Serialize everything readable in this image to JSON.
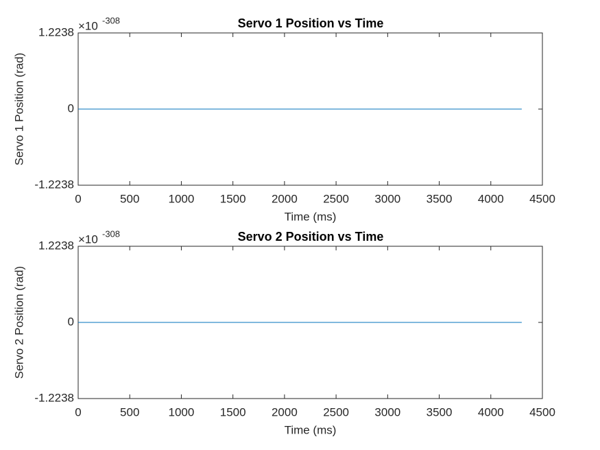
{
  "chart_data": [
    {
      "type": "line",
      "title": "Servo 1 Position vs Time",
      "xlabel": "Time (ms)",
      "ylabel": "Servo 1 Position (rad)",
      "y_multiplier": {
        "base": "×10",
        "exponent": "-308"
      },
      "x": [
        0,
        4300
      ],
      "series": [
        {
          "name": "Servo 1",
          "color": "#0072bd",
          "values": [
            0,
            0
          ]
        }
      ],
      "xlim": [
        0,
        4500
      ],
      "xticks": [
        0,
        500,
        1000,
        1500,
        2000,
        2500,
        3000,
        3500,
        4000,
        4500
      ],
      "ylim": [
        -1.2238,
        1.2238
      ],
      "yticks": [
        -1.2238,
        0,
        1.2238
      ],
      "grid": false
    },
    {
      "type": "line",
      "title": "Servo 2 Position vs Time",
      "xlabel": "Time (ms)",
      "ylabel": "Servo 2 Position (rad)",
      "y_multiplier": {
        "base": "×10",
        "exponent": "-308"
      },
      "x": [
        0,
        4300
      ],
      "series": [
        {
          "name": "Servo 2",
          "color": "#0072bd",
          "values": [
            0,
            0
          ]
        }
      ],
      "xlim": [
        0,
        4500
      ],
      "xticks": [
        0,
        500,
        1000,
        1500,
        2000,
        2500,
        3000,
        3500,
        4000,
        4500
      ],
      "ylim": [
        -1.2238,
        1.2238
      ],
      "yticks": [
        -1.2238,
        0,
        1.2238
      ],
      "grid": false
    }
  ]
}
